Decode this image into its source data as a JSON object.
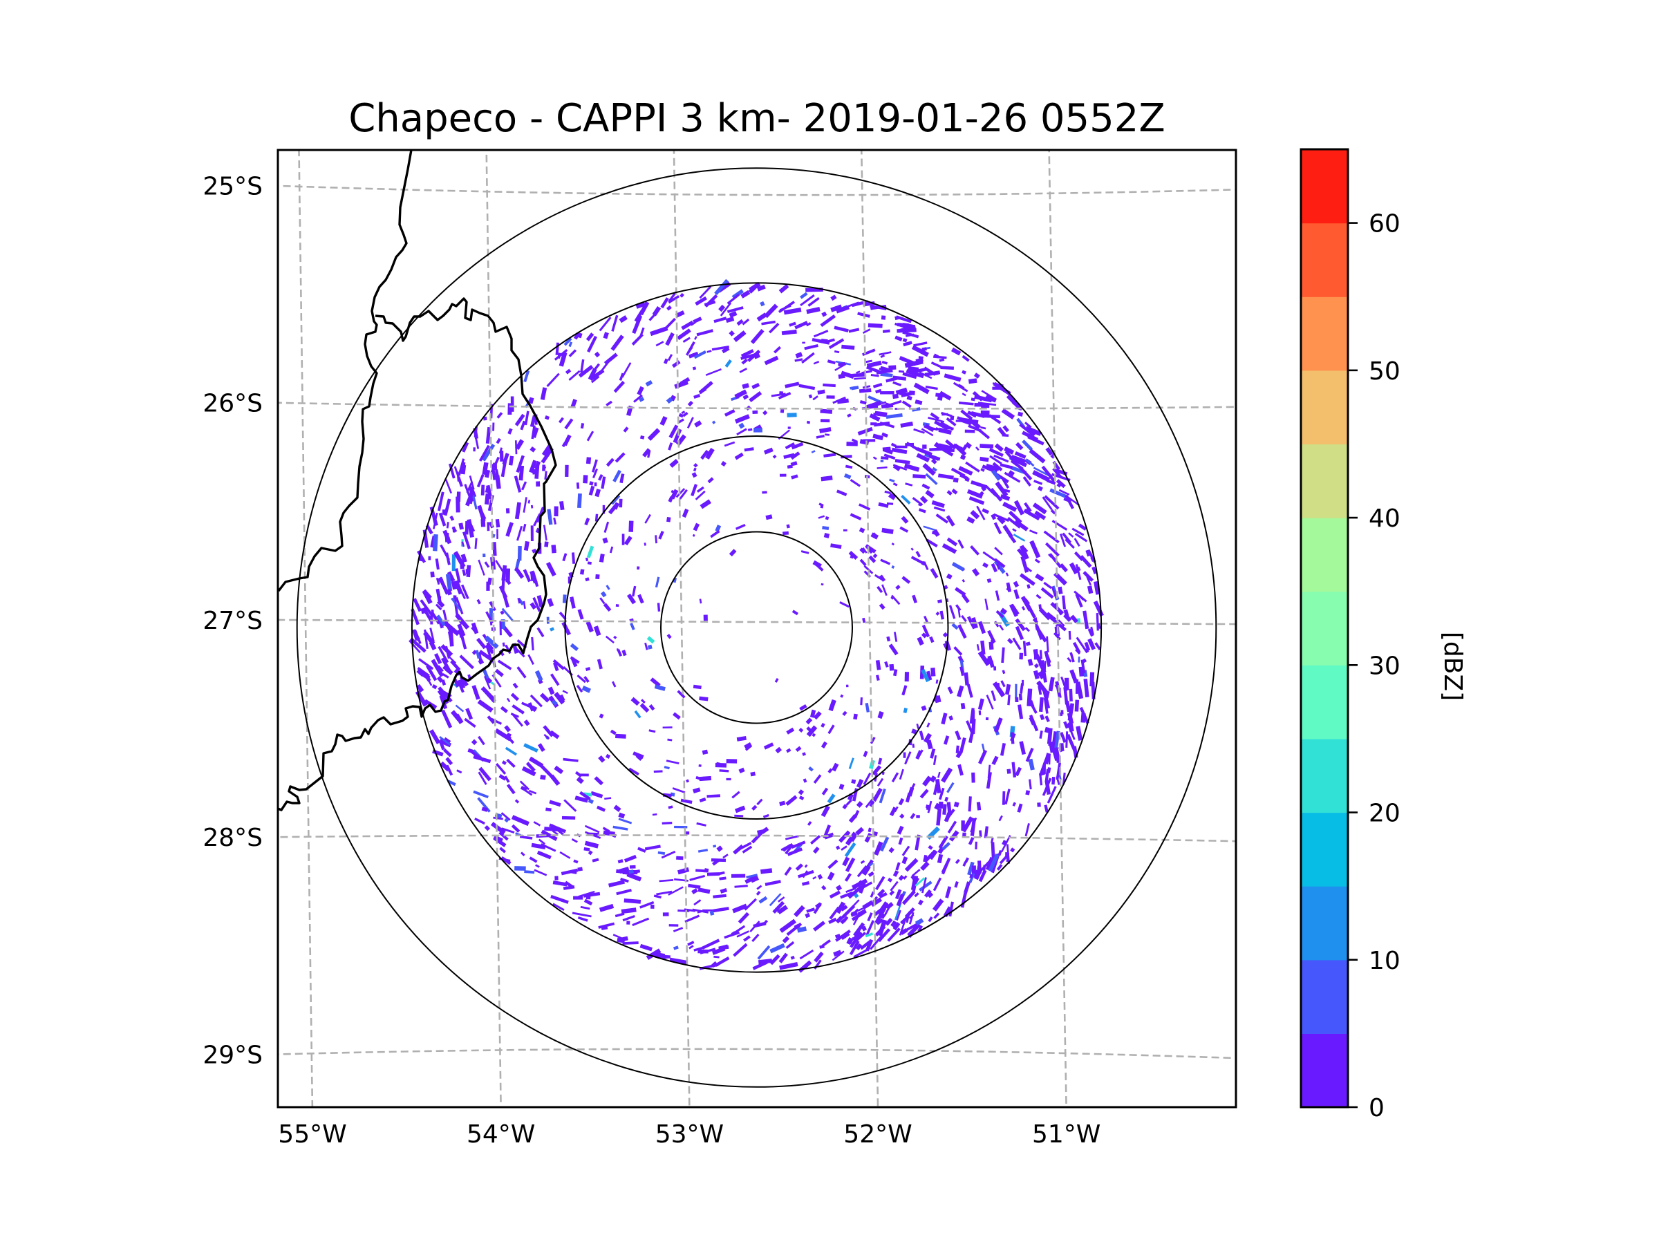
{
  "chart_data": {
    "type": "heatmap",
    "title": "Chapeco - CAPPI 3 km- 2019-01-26 0552Z",
    "radar": "Chapeco",
    "product": "CAPPI",
    "altitude_km": 3,
    "datetime": "2019-01-26 0552Z",
    "projection": "map (lat/lon)",
    "xlabel": "",
    "ylabel": "",
    "xlim_lon": [
      -55.18,
      -50.08
    ],
    "ylim_lat": [
      -29.27,
      -24.78
    ],
    "x_ticks": [
      {
        "value": -55,
        "label": "55°W"
      },
      {
        "value": -54,
        "label": "54°W"
      },
      {
        "value": -53,
        "label": "53°W"
      },
      {
        "value": -52,
        "label": "52°W"
      },
      {
        "value": -51,
        "label": "51°W"
      }
    ],
    "y_ticks": [
      {
        "value": -25,
        "label": "25°S"
      },
      {
        "value": -26,
        "label": "26°S"
      },
      {
        "value": -27,
        "label": "27°S"
      },
      {
        "value": -28,
        "label": "28°S"
      },
      {
        "value": -29,
        "label": "29°S"
      }
    ],
    "grid": true,
    "grid_style": "dashed",
    "radar_center": {
      "lon": -52.6,
      "lat": -27.03
    },
    "range_rings_km": [
      50,
      100,
      180,
      240
    ],
    "echo_max_range_km": 180,
    "colorbar": {
      "label": "[dBZ]",
      "range": [
        0,
        65
      ],
      "ticks": [
        0,
        10,
        20,
        30,
        40,
        50,
        60
      ],
      "levels": [
        {
          "from": 0,
          "to": 5,
          "color": "#6a1aff"
        },
        {
          "from": 5,
          "to": 10,
          "color": "#4657fb"
        },
        {
          "from": 10,
          "to": 15,
          "color": "#2090ee"
        },
        {
          "from": 15,
          "to": 20,
          "color": "#08bde5"
        },
        {
          "from": 20,
          "to": 25,
          "color": "#32e1d6"
        },
        {
          "from": 25,
          "to": 30,
          "color": "#60fac4"
        },
        {
          "from": 30,
          "to": 35,
          "color": "#87fdb0"
        },
        {
          "from": 35,
          "to": 40,
          "color": "#a4f99a"
        },
        {
          "from": 40,
          "to": 45,
          "color": "#d0df85"
        },
        {
          "from": 45,
          "to": 50,
          "color": "#f4bf6d"
        },
        {
          "from": 50,
          "to": 55,
          "color": "#ff924f"
        },
        {
          "from": 55,
          "to": 60,
          "color": "#ff5a30"
        },
        {
          "from": 60,
          "to": 65,
          "color": "#ff1e12"
        }
      ],
      "placement": "right"
    },
    "observed_echo_range_dbz": [
      0,
      20
    ],
    "dominant_echo_level_dbz": [
      0,
      5
    ]
  }
}
